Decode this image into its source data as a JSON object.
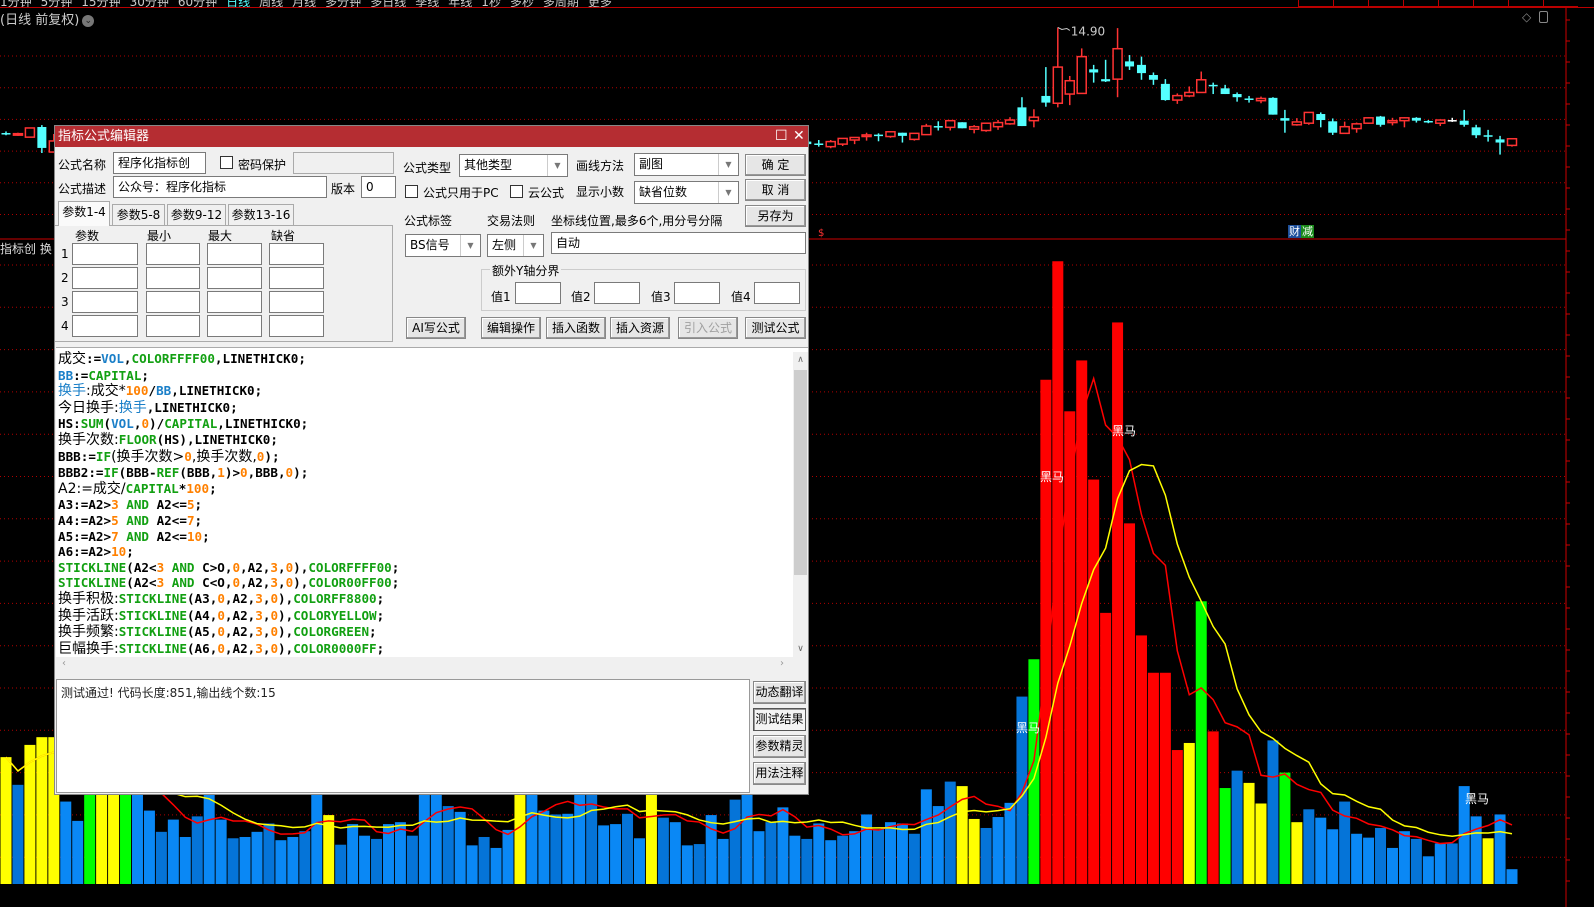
{
  "topbar": {
    "periods": [
      "1分钟",
      "5分钟",
      "15分钟",
      "30分钟",
      "60分钟",
      "日线",
      "周线",
      "月线",
      "多分钟",
      "多日线",
      "季线",
      "年线",
      "1秒",
      "多秒",
      "多周期",
      "更多"
    ],
    "active_period": "日线",
    "period_title": "(日线 前复权)"
  },
  "chart": {
    "price_high_label": "14.90",
    "indicator_label": "指标创",
    "indicator_label2": "换",
    "badge_cai": "财",
    "badge_jian": "减",
    "signal_label": "黑马",
    "colors": {
      "up": "#ff3333",
      "down": "#54ffff",
      "grid": "#b00000",
      "blue_bar": "#0a88f5",
      "yellow_bar": "#ffff00",
      "green_bar": "#00ff00",
      "red_bar": "#ff0000",
      "ma_short": "#ff0000",
      "ma_long": "#ffff00"
    },
    "price_gridlines": [
      14,
      13,
      12,
      11,
      10,
      9
    ],
    "turnover_pct": [
      19.7,
      15.4,
      21.6,
      22.8,
      22.8,
      12.8,
      9.8,
      18,
      20,
      19,
      17,
      15,
      11.4,
      8.1,
      10.0,
      7.3,
      10.5,
      14,
      10.0,
      7.1,
      7.3,
      8.1,
      9.4,
      6.8,
      7.3,
      8.2,
      16,
      10.7,
      6.1,
      9.3,
      7.5,
      7.0,
      9.3,
      9.6,
      7.5,
      15,
      14,
      12.1,
      11.2,
      6.0,
      7.3,
      5.6,
      8.4,
      17,
      14,
      11.4,
      10.8,
      10.9,
      14,
      15,
      9.1,
      9.3,
      10.9,
      7.1,
      16,
      10.3,
      9.6,
      6.0,
      6.2,
      10.7,
      7.0,
      13.1,
      15,
      8.2,
      9.6,
      11.9,
      7.5,
      7.0,
      9.4,
      6.8,
      7.5,
      8.2,
      10.8,
      8.5,
      9.6,
      9.4,
      7.8,
      14.7,
      12.1,
      15.9,
      15.2,
      10.1,
      8.7,
      10.4,
      12.6,
      29.1,
      34.9,
      78.3,
      96.7,
      73.4,
      81.3,
      62.8,
      42.1,
      87.2,
      56.0,
      38.6,
      32.8,
      32.8,
      20.8,
      21.9,
      43.9,
      23.7,
      14.9,
      17.6,
      15.7,
      12.5,
      22.3,
      17.3,
      9.6,
      11.6,
      10.3,
      8.5,
      12.8,
      7.8,
      7.2,
      8.7,
      5.6,
      8.2,
      7.0,
      4.3,
      6.3,
      6.3,
      15.2,
      10.5,
      7.1,
      10.8,
      2.3
    ],
    "turnover_colors": "yb yyy bbgyygbbbbbbbbbbbbbbbbybbbbbbbbbbbbbbbybbbbbbbbbbybbbbbbbbbbbbb bbbbbbbbbbbbyybbbbgrrrrrrrrrrrrygrgbyybgybbbbbbbbbbbbbbbybbbb",
    "candles": [
      [
        11.57,
        11.62,
        11.5,
        11.55
      ],
      [
        11.52,
        11.58,
        11.48,
        11.55
      ],
      [
        11.44,
        11.73,
        11.44,
        11.73
      ],
      [
        11.76,
        11.82,
        10.94,
        11.1
      ],
      [
        10.97,
        11.54,
        10.97,
        11.32
      ],
      null,
      null,
      null,
      null,
      null,
      null,
      null,
      null,
      null,
      null,
      null,
      null,
      null,
      null,
      null,
      null,
      null,
      null,
      null,
      null,
      null,
      null,
      null,
      null,
      null,
      null,
      null,
      null,
      null,
      null,
      null,
      null,
      null,
      null,
      null,
      null,
      null,
      null,
      null,
      null,
      null,
      null,
      null,
      null,
      null,
      null,
      null,
      null,
      null,
      null,
      null,
      null,
      null,
      null,
      null,
      null,
      null,
      null,
      null,
      null,
      null,
      null,
      [
        11.3,
        11.36,
        11.15,
        11.22
      ],
      [
        11.24,
        11.35,
        11.14,
        11.21
      ],
      [
        11.14,
        11.35,
        11.09,
        11.3
      ],
      [
        11.22,
        11.4,
        11.16,
        11.4
      ],
      [
        11.35,
        11.43,
        11.22,
        11.43
      ],
      [
        11.46,
        11.58,
        11.33,
        11.51
      ],
      [
        11.52,
        11.56,
        11.31,
        11.5
      ],
      [
        11.46,
        11.61,
        11.42,
        11.61
      ],
      [
        11.58,
        11.58,
        11.27,
        11.48
      ],
      [
        11.37,
        11.56,
        11.33,
        11.56
      ],
      [
        11.52,
        11.86,
        11.52,
        11.79
      ],
      [
        11.79,
        11.94,
        11.65,
        11.77
      ],
      [
        11.75,
        11.96,
        11.65,
        11.96
      ],
      [
        11.91,
        11.91,
        11.72,
        11.72
      ],
      [
        11.69,
        11.82,
        11.56,
        11.77
      ],
      [
        11.65,
        11.88,
        11.61,
        11.88
      ],
      [
        11.77,
        11.98,
        11.67,
        11.9
      ],
      [
        11.86,
        12.07,
        11.83,
        11.98
      ],
      [
        12.38,
        12.7,
        11.79,
        11.79
      ],
      [
        11.96,
        12.32,
        11.75,
        12.07
      ],
      [
        12.74,
        13.65,
        12.4,
        12.53
      ],
      [
        12.51,
        14.9,
        12.38,
        13.65
      ],
      [
        12.8,
        13.37,
        12.45,
        13.22
      ],
      [
        12.82,
        14.24,
        12.82,
        13.98
      ],
      [
        13.58,
        13.72,
        13.16,
        13.48
      ],
      [
        13.27,
        13.88,
        13.18,
        13.2
      ],
      [
        13.27,
        14.88,
        12.7,
        14.23
      ],
      [
        13.83,
        14.03,
        13.56,
        13.67
      ],
      [
        13.72,
        13.98,
        13.25,
        13.46
      ],
      [
        13.4,
        13.48,
        13.09,
        13.25
      ],
      [
        13.12,
        13.27,
        12.59,
        12.61
      ],
      [
        12.61,
        12.82,
        12.49,
        12.75
      ],
      [
        12.74,
        13.04,
        12.7,
        12.85
      ],
      [
        12.85,
        13.51,
        12.85,
        13.25
      ],
      [
        13.09,
        13.16,
        12.8,
        13.06
      ],
      [
        12.98,
        13.09,
        12.8,
        12.8
      ],
      [
        12.8,
        12.85,
        12.56,
        12.7
      ],
      [
        12.66,
        12.74,
        12.53,
        12.64
      ],
      [
        12.59,
        12.72,
        12.51,
        12.66
      ],
      [
        12.68,
        12.7,
        12.15,
        12.15
      ],
      [
        12.04,
        12.3,
        11.58,
        11.96
      ],
      [
        11.83,
        12.04,
        11.8,
        11.92
      ],
      [
        11.88,
        12.22,
        11.83,
        12.22
      ],
      [
        12.17,
        12.22,
        11.75,
        11.98
      ],
      [
        11.94,
        12.03,
        11.51,
        11.58
      ],
      [
        11.56,
        11.93,
        11.56,
        11.77
      ],
      [
        11.71,
        11.9,
        11.58,
        11.86
      ],
      [
        11.88,
        12.07,
        11.86,
        12.05
      ],
      [
        12.09,
        12.11,
        11.77,
        11.83
      ],
      [
        11.9,
        12.05,
        11.81,
        11.96
      ],
      [
        11.96,
        12.07,
        11.75,
        12.05
      ],
      [
        12.05,
        12.07,
        11.9,
        11.96
      ],
      [
        11.95,
        11.98,
        11.88,
        11.92
      ],
      [
        11.88,
        12.0,
        11.79,
        11.98
      ],
      [
        11.98,
        12.05,
        11.92,
        11.98
      ],
      [
        11.96,
        12.3,
        11.77,
        11.83
      ],
      [
        11.75,
        11.83,
        11.41,
        11.5
      ],
      [
        11.5,
        11.67,
        11.3,
        11.46
      ],
      [
        11.37,
        11.48,
        10.89,
        11.27
      ],
      [
        11.18,
        11.39,
        11.14,
        11.39
      ]
    ]
  },
  "dialog": {
    "title": "指标公式编辑器",
    "name_label": "公式名称",
    "name_value": "程序化指标创",
    "password_label": "密码保护",
    "desc_label": "公式描述",
    "desc_value": "公众号：程序化指标",
    "version_label": "版本",
    "version_value": "0",
    "tabs": [
      "参数1-4",
      "参数5-8",
      "参数9-12",
      "参数13-16"
    ],
    "param_headers": [
      "参数",
      "最小",
      "最大",
      "缺省"
    ],
    "param_rows": [
      "1",
      "2",
      "3",
      "4"
    ],
    "type_label": "公式类型",
    "type_value": "其他类型",
    "draw_label": "画线方法",
    "draw_value": "副图",
    "pc_only_label": "公式只用于PC",
    "cloud_label": "云公式",
    "decimal_label": "显示小数",
    "decimal_value": "缺省位数",
    "ok": "确  定",
    "cancel": "取  消",
    "save_as": "另存为",
    "tag_label": "公式标签",
    "tag_value": "BS信号",
    "rule_label": "交易法则",
    "rule_value": "左侧",
    "axis_label": "坐标线位置,最多6个,用分号分隔",
    "axis_value": "自动",
    "ygroup_label": "额外Y轴分界",
    "yvals": [
      "值1",
      "值2",
      "值3",
      "值4"
    ],
    "buttons": [
      "AI写公式",
      "编辑操作",
      "插入函数",
      "插入资源",
      "引入公式",
      "测试公式"
    ],
    "side_buttons": [
      "动态翻译",
      "测试结果",
      "参数精灵",
      "用法注释"
    ],
    "output": "测试通过! 代码长度:851,输出线个数:15"
  },
  "code": {
    "lines": [
      [
        [
          "成交",
          "t"
        ],
        [
          ":=",
          "t"
        ],
        [
          "VOL",
          "v"
        ],
        [
          ",",
          "t"
        ],
        [
          "COLORFFFF00",
          "f"
        ],
        [
          ",LINETHICK0;",
          "t"
        ]
      ],
      [
        [
          "BB",
          "v"
        ],
        [
          ":=",
          "t"
        ],
        [
          "CAPITAL",
          "f"
        ],
        [
          ";",
          "t"
        ]
      ],
      [
        [
          "换手",
          "v"
        ],
        [
          ":成交*",
          "t"
        ],
        [
          "100",
          "n"
        ],
        [
          "/",
          "t"
        ],
        [
          "BB",
          "v"
        ],
        [
          ",LINETHICK0;",
          "t"
        ]
      ],
      [
        [
          "今日换手:",
          "t"
        ],
        [
          "换手",
          "v"
        ],
        [
          ",LINETHICK0;",
          "t"
        ]
      ],
      [
        [
          "HS:",
          "t"
        ],
        [
          "SUM",
          "f"
        ],
        [
          "(",
          "t"
        ],
        [
          "VOL",
          "v"
        ],
        [
          ",",
          "t"
        ],
        [
          "0",
          "n"
        ],
        [
          ")/",
          "t"
        ],
        [
          "CAPITAL",
          "f"
        ],
        [
          ",LINETHICK0;",
          "t"
        ]
      ],
      [
        [
          "换手次数:",
          "t"
        ],
        [
          "FLOOR",
          "f"
        ],
        [
          "(HS),LINETHICK0;",
          "t"
        ]
      ],
      [
        [
          "BBB:=",
          "t"
        ],
        [
          "IF",
          "f"
        ],
        [
          "(换手次数>",
          "t"
        ],
        [
          "0",
          "n"
        ],
        [
          ",换手次数,",
          "t"
        ],
        [
          "0",
          "n"
        ],
        [
          ");",
          "t"
        ]
      ],
      [
        [
          "BBB2:=",
          "t"
        ],
        [
          "IF",
          "f"
        ],
        [
          "(BBB-",
          "t"
        ],
        [
          "REF",
          "f"
        ],
        [
          "(BBB,",
          "t"
        ],
        [
          "1",
          "n"
        ],
        [
          ")>",
          "t"
        ],
        [
          "0",
          "n"
        ],
        [
          ",BBB,",
          "t"
        ],
        [
          "0",
          "n"
        ],
        [
          ");",
          "t"
        ]
      ],
      [
        [
          "A2:=成交/",
          "t"
        ],
        [
          "CAPITAL",
          "f"
        ],
        [
          "*",
          "t"
        ],
        [
          "100",
          "n"
        ],
        [
          ";",
          "t"
        ]
      ],
      [
        [
          "A3:=A2>",
          "t"
        ],
        [
          "3",
          "n"
        ],
        [
          " AND ",
          "f"
        ],
        [
          "A2<=",
          "t"
        ],
        [
          "5",
          "n"
        ],
        [
          ";",
          "t"
        ]
      ],
      [
        [
          "A4:=A2>",
          "t"
        ],
        [
          "5",
          "n"
        ],
        [
          " AND ",
          "f"
        ],
        [
          "A2<=",
          "t"
        ],
        [
          "7",
          "n"
        ],
        [
          ";",
          "t"
        ]
      ],
      [
        [
          "A5:=A2>",
          "t"
        ],
        [
          "7",
          "n"
        ],
        [
          " AND ",
          "f"
        ],
        [
          "A2<=",
          "t"
        ],
        [
          "10",
          "n"
        ],
        [
          ";",
          "t"
        ]
      ],
      [
        [
          "A6:=A2>",
          "t"
        ],
        [
          "10",
          "n"
        ],
        [
          ";",
          "t"
        ]
      ],
      [
        [
          "STICKLINE",
          "f"
        ],
        [
          "(A2<",
          "t"
        ],
        [
          "3",
          "n"
        ],
        [
          " AND ",
          "f"
        ],
        [
          "C>O,",
          "t"
        ],
        [
          "0",
          "n"
        ],
        [
          ",A2,",
          "t"
        ],
        [
          "3",
          "n"
        ],
        [
          ",",
          "t"
        ],
        [
          "0",
          "n"
        ],
        [
          "),",
          "t"
        ],
        [
          "COLORFFFF00",
          "f"
        ],
        [
          ";",
          "t"
        ]
      ],
      [
        [
          "STICKLINE",
          "f"
        ],
        [
          "(A2<",
          "t"
        ],
        [
          "3",
          "n"
        ],
        [
          " AND ",
          "f"
        ],
        [
          "C<O,",
          "t"
        ],
        [
          "0",
          "n"
        ],
        [
          ",A2,",
          "t"
        ],
        [
          "3",
          "n"
        ],
        [
          ",",
          "t"
        ],
        [
          "0",
          "n"
        ],
        [
          "),",
          "t"
        ],
        [
          "COLOR00FF00",
          "f"
        ],
        [
          ";",
          "t"
        ]
      ],
      [
        [
          "换手积极:",
          "t"
        ],
        [
          "STICKLINE",
          "f"
        ],
        [
          "(A3,",
          "t"
        ],
        [
          "0",
          "n"
        ],
        [
          ",A2,",
          "t"
        ],
        [
          "3",
          "n"
        ],
        [
          ",",
          "t"
        ],
        [
          "0",
          "n"
        ],
        [
          "),",
          "t"
        ],
        [
          "COLORFF8800",
          "f"
        ],
        [
          ";",
          "t"
        ]
      ],
      [
        [
          "换手活跃:",
          "t"
        ],
        [
          "STICKLINE",
          "f"
        ],
        [
          "(A4,",
          "t"
        ],
        [
          "0",
          "n"
        ],
        [
          ",A2,",
          "t"
        ],
        [
          "3",
          "n"
        ],
        [
          ",",
          "t"
        ],
        [
          "0",
          "n"
        ],
        [
          "),",
          "t"
        ],
        [
          "COLORYELLOW",
          "f"
        ],
        [
          ";",
          "t"
        ]
      ],
      [
        [
          "换手频繁:",
          "t"
        ],
        [
          "STICKLINE",
          "f"
        ],
        [
          "(A5,",
          "t"
        ],
        [
          "0",
          "n"
        ],
        [
          ",A2,",
          "t"
        ],
        [
          "3",
          "n"
        ],
        [
          ",",
          "t"
        ],
        [
          "0",
          "n"
        ],
        [
          "),",
          "t"
        ],
        [
          "COLORGREEN",
          "f"
        ],
        [
          ";",
          "t"
        ]
      ],
      [
        [
          "巨幅换手:",
          "t"
        ],
        [
          "STICKLINE",
          "f"
        ],
        [
          "(A6,",
          "t"
        ],
        [
          "0",
          "n"
        ],
        [
          ",A2,",
          "t"
        ],
        [
          "3",
          "n"
        ],
        [
          ",",
          "t"
        ],
        [
          "0",
          "n"
        ],
        [
          "),",
          "t"
        ],
        [
          "COLOR0000FF",
          "f"
        ],
        [
          ";",
          "t"
        ]
      ]
    ]
  }
}
